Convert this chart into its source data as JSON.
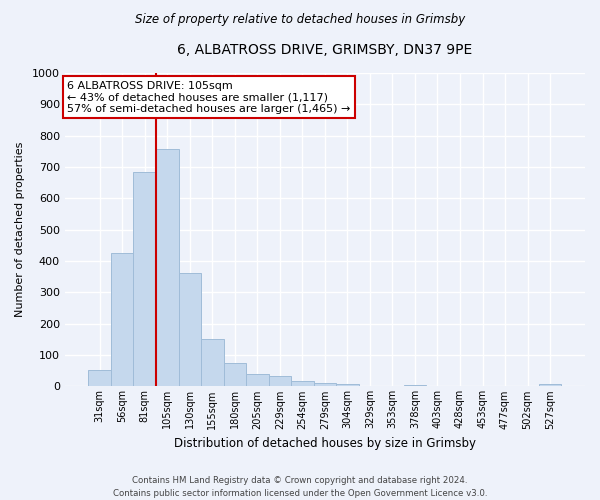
{
  "title": "6, ALBATROSS DRIVE, GRIMSBY, DN37 9PE",
  "subtitle": "Size of property relative to detached houses in Grimsby",
  "xlabel": "Distribution of detached houses by size in Grimsby",
  "ylabel": "Number of detached properties",
  "bar_labels": [
    "31sqm",
    "56sqm",
    "81sqm",
    "105sqm",
    "130sqm",
    "155sqm",
    "180sqm",
    "205sqm",
    "229sqm",
    "254sqm",
    "279sqm",
    "304sqm",
    "329sqm",
    "353sqm",
    "378sqm",
    "403sqm",
    "428sqm",
    "453sqm",
    "477sqm",
    "502sqm",
    "527sqm"
  ],
  "bar_values": [
    52,
    425,
    685,
    757,
    362,
    152,
    75,
    40,
    32,
    18,
    10,
    8,
    0,
    0,
    5,
    0,
    0,
    0,
    0,
    0,
    8
  ],
  "bar_color": "#c5d8ed",
  "bar_edge_color": "#a0bcd8",
  "vline_x_idx": 3,
  "vline_color": "#cc0000",
  "annotation_title": "6 ALBATROSS DRIVE: 105sqm",
  "annotation_line1": "← 43% of detached houses are smaller (1,117)",
  "annotation_line2": "57% of semi-detached houses are larger (1,465) →",
  "annotation_box_color": "#ffffff",
  "annotation_box_edge": "#cc0000",
  "ylim": [
    0,
    1000
  ],
  "yticks": [
    0,
    100,
    200,
    300,
    400,
    500,
    600,
    700,
    800,
    900,
    1000
  ],
  "footer_line1": "Contains HM Land Registry data © Crown copyright and database right 2024.",
  "footer_line2": "Contains public sector information licensed under the Open Government Licence v3.0.",
  "background_color": "#eef2fa",
  "plot_bg_color": "#eef2fa",
  "grid_color": "#ffffff"
}
